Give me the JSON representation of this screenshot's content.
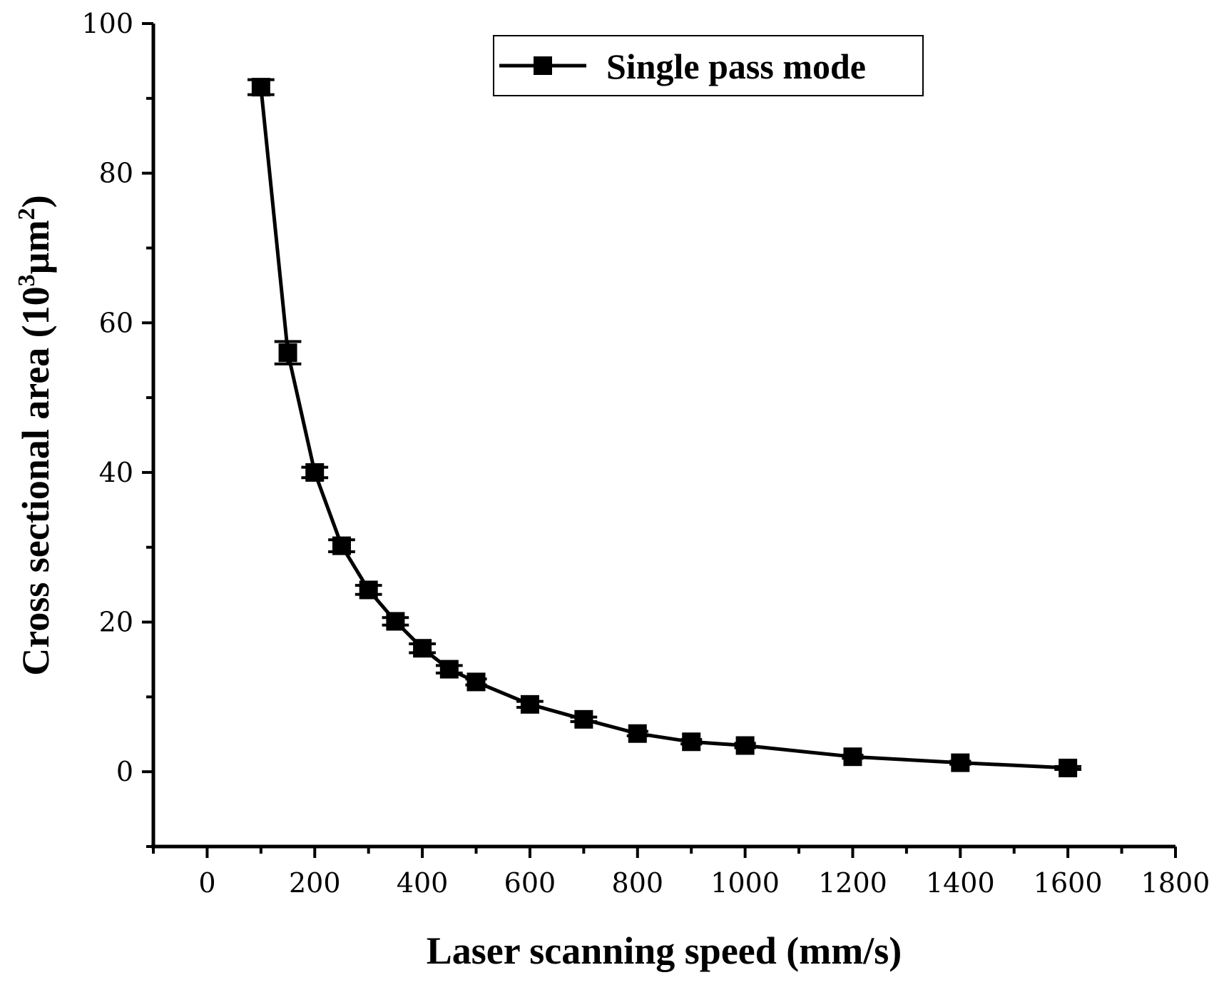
{
  "chart_data": {
    "type": "line",
    "title": "",
    "xlabel": "Laser scanning speed (mm/s)",
    "ylabel_main": "Cross sectional area (10",
    "ylabel_sup1": "3",
    "ylabel_mid": "µm",
    "ylabel_sup2": "2",
    "ylabel_end": ")",
    "xlim": [
      -100,
      1800
    ],
    "ylim": [
      -10,
      100
    ],
    "x_ticks": [
      0,
      200,
      400,
      600,
      800,
      1000,
      1200,
      1400,
      1600,
      1800
    ],
    "x_tick_labels": [
      "0",
      "200",
      "400",
      "600",
      "800",
      "1000",
      "1200",
      "1400",
      "1600",
      "1800"
    ],
    "y_ticks": [
      0,
      20,
      40,
      60,
      80,
      100
    ],
    "y_tick_labels": [
      "0",
      "20",
      "40",
      "60",
      "80",
      "100"
    ],
    "grid": false,
    "legend_position": "top-right",
    "series": [
      {
        "name": "Single pass mode",
        "x": [
          100,
          150,
          200,
          250,
          300,
          350,
          400,
          450,
          500,
          600,
          700,
          800,
          900,
          1000,
          1200,
          1400,
          1600
        ],
        "y": [
          91.5,
          56,
          40,
          30.2,
          24.3,
          20.1,
          16.5,
          13.7,
          12,
          9,
          7,
          5.1,
          4,
          3.5,
          2,
          1.2,
          0.5
        ],
        "yerr": [
          1.0,
          1.5,
          0.7,
          0.8,
          0.6,
          0.5,
          0.6,
          0.5,
          0.4,
          0.4,
          0.3,
          0.3,
          0.3,
          0.3,
          0.2,
          0.2,
          0.2
        ],
        "xerr": [
          25,
          25,
          25,
          25,
          25,
          25,
          25,
          25,
          20,
          25,
          25,
          20,
          20,
          20,
          20,
          20,
          25
        ],
        "color": "#000000",
        "marker": "square"
      }
    ]
  }
}
